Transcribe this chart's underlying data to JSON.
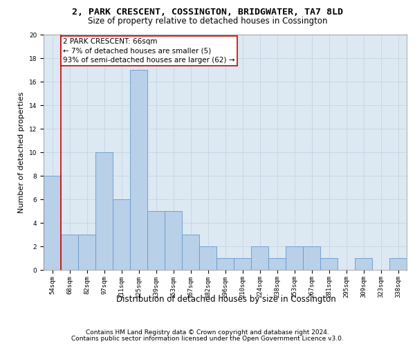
{
  "title1": "2, PARK CRESCENT, COSSINGTON, BRIDGWATER, TA7 8LD",
  "title2": "Size of property relative to detached houses in Cossington",
  "xlabel": "Distribution of detached houses by size in Cossington",
  "ylabel": "Number of detached properties",
  "footer1": "Contains HM Land Registry data © Crown copyright and database right 2024.",
  "footer2": "Contains public sector information licensed under the Open Government Licence v3.0.",
  "bar_labels": [
    "54sqm",
    "68sqm",
    "82sqm",
    "97sqm",
    "111sqm",
    "125sqm",
    "139sqm",
    "153sqm",
    "167sqm",
    "182sqm",
    "196sqm",
    "210sqm",
    "224sqm",
    "238sqm",
    "253sqm",
    "267sqm",
    "281sqm",
    "295sqm",
    "309sqm",
    "323sqm",
    "338sqm"
  ],
  "bar_heights": [
    8,
    3,
    3,
    10,
    6,
    17,
    5,
    5,
    3,
    2,
    1,
    1,
    2,
    1,
    2,
    2,
    1,
    0,
    1,
    0,
    1
  ],
  "bar_color": "#b8d0e8",
  "bar_edge_color": "#6699cc",
  "bar_edge_width": 0.6,
  "vline_color": "#cc0000",
  "vline_x": 0.5,
  "annotation_text": "2 PARK CRESCENT: 66sqm\n← 7% of detached houses are smaller (5)\n93% of semi-detached houses are larger (62) →",
  "annotation_box_edgecolor": "#cc0000",
  "ylim": [
    0,
    20
  ],
  "yticks": [
    0,
    2,
    4,
    6,
    8,
    10,
    12,
    14,
    16,
    18,
    20
  ],
  "grid_color": "#c5d5e5",
  "bg_color": "#dce8f2",
  "title1_fontsize": 9.5,
  "title2_fontsize": 8.5,
  "xlabel_fontsize": 8.5,
  "ylabel_fontsize": 8,
  "tick_fontsize": 6.5,
  "annotation_fontsize": 7.5,
  "footer_fontsize": 6.5
}
